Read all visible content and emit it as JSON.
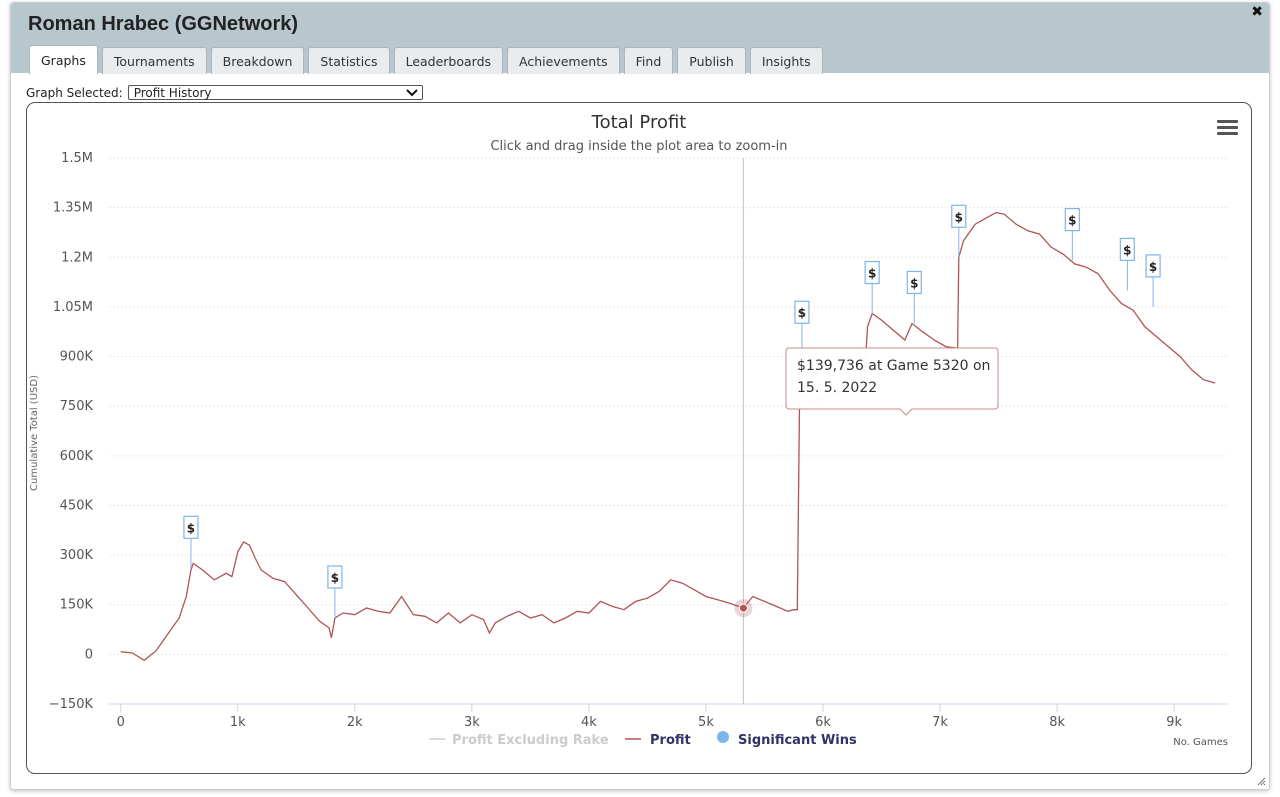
{
  "window": {
    "title": "Roman Hrabec (GGNetwork)",
    "close_glyph": "✖"
  },
  "tabs": [
    {
      "label": "Graphs",
      "active": true
    },
    {
      "label": "Tournaments",
      "active": false
    },
    {
      "label": "Breakdown",
      "active": false
    },
    {
      "label": "Statistics",
      "active": false
    },
    {
      "label": "Leaderboards",
      "active": false
    },
    {
      "label": "Achievements",
      "active": false
    },
    {
      "label": "Find",
      "active": false
    },
    {
      "label": "Publish",
      "active": false
    },
    {
      "label": "Insights",
      "active": false
    }
  ],
  "graph_selector": {
    "label": "Graph Selected:",
    "value": "Profit History"
  },
  "menu_icon": "hamburger-menu-icon",
  "tooltip": {
    "line1": "$139,736 at Game 5320 on",
    "line2": "15. 5. 2022"
  },
  "flag_glyph": "$",
  "chart_data": {
    "type": "line",
    "title": "Total Profit",
    "subtitle": "Click and drag inside the plot area to zoom-in",
    "xlabel": "No. Games",
    "ylabel": "Cumulative Total (USD)",
    "xlim": [
      -100,
      9460
    ],
    "ylim": [
      -150000,
      1500000
    ],
    "x_ticks": [
      0,
      1000,
      2000,
      3000,
      4000,
      5000,
      6000,
      7000,
      8000,
      9000
    ],
    "x_tick_labels": [
      "0",
      "1k",
      "2k",
      "3k",
      "4k",
      "5k",
      "6k",
      "7k",
      "8k",
      "9k"
    ],
    "y_ticks": [
      -150000,
      0,
      150000,
      300000,
      450000,
      600000,
      750000,
      900000,
      1050000,
      1200000,
      1350000,
      1500000
    ],
    "y_tick_labels": [
      "−150K",
      "0",
      "150K",
      "300K",
      "450K",
      "600K",
      "750K",
      "900K",
      "1.05M",
      "1.2M",
      "1.35M",
      "1.5M"
    ],
    "grid": true,
    "legend_position": "bottom-center",
    "crosshair_x": 5320,
    "highlight_point": {
      "x": 5320,
      "y": 139736
    },
    "series": [
      {
        "name": "Profit Excluding Rake",
        "color": "#cccccc",
        "hidden": true,
        "points": []
      },
      {
        "name": "Profit",
        "color": "#b05555",
        "points": [
          [
            0,
            8000
          ],
          [
            100,
            4000
          ],
          [
            200,
            -18000
          ],
          [
            300,
            10000
          ],
          [
            400,
            60000
          ],
          [
            500,
            110000
          ],
          [
            560,
            175000
          ],
          [
            600,
            255000
          ],
          [
            620,
            275000
          ],
          [
            700,
            255000
          ],
          [
            800,
            225000
          ],
          [
            900,
            245000
          ],
          [
            950,
            235000
          ],
          [
            1000,
            310000
          ],
          [
            1050,
            340000
          ],
          [
            1100,
            330000
          ],
          [
            1150,
            290000
          ],
          [
            1200,
            255000
          ],
          [
            1300,
            230000
          ],
          [
            1400,
            220000
          ],
          [
            1500,
            180000
          ],
          [
            1600,
            140000
          ],
          [
            1700,
            100000
          ],
          [
            1780,
            80000
          ],
          [
            1800,
            50000
          ],
          [
            1830,
            110000
          ],
          [
            1900,
            125000
          ],
          [
            2000,
            120000
          ],
          [
            2100,
            140000
          ],
          [
            2200,
            130000
          ],
          [
            2300,
            125000
          ],
          [
            2400,
            175000
          ],
          [
            2500,
            120000
          ],
          [
            2600,
            115000
          ],
          [
            2700,
            95000
          ],
          [
            2800,
            125000
          ],
          [
            2900,
            95000
          ],
          [
            3000,
            120000
          ],
          [
            3100,
            105000
          ],
          [
            3150,
            65000
          ],
          [
            3200,
            95000
          ],
          [
            3300,
            115000
          ],
          [
            3400,
            130000
          ],
          [
            3500,
            110000
          ],
          [
            3600,
            120000
          ],
          [
            3700,
            95000
          ],
          [
            3800,
            110000
          ],
          [
            3900,
            130000
          ],
          [
            4000,
            125000
          ],
          [
            4100,
            160000
          ],
          [
            4200,
            145000
          ],
          [
            4300,
            135000
          ],
          [
            4400,
            160000
          ],
          [
            4500,
            170000
          ],
          [
            4600,
            190000
          ],
          [
            4700,
            225000
          ],
          [
            4800,
            215000
          ],
          [
            4900,
            195000
          ],
          [
            5000,
            175000
          ],
          [
            5100,
            165000
          ],
          [
            5200,
            155000
          ],
          [
            5320,
            139736
          ],
          [
            5400,
            175000
          ],
          [
            5500,
            160000
          ],
          [
            5600,
            145000
          ],
          [
            5700,
            130000
          ],
          [
            5750,
            135000
          ],
          [
            5780,
            135000
          ],
          [
            5800,
            780000
          ],
          [
            5850,
            780000
          ],
          [
            5900,
            760000
          ],
          [
            6000,
            775000
          ],
          [
            6100,
            790000
          ],
          [
            6200,
            800000
          ],
          [
            6350,
            810000
          ],
          [
            6380,
            990000
          ],
          [
            6420,
            1030000
          ],
          [
            6500,
            1010000
          ],
          [
            6600,
            980000
          ],
          [
            6700,
            950000
          ],
          [
            6760,
            1000000
          ],
          [
            6850,
            975000
          ],
          [
            6950,
            950000
          ],
          [
            7050,
            930000
          ],
          [
            7150,
            925000
          ],
          [
            7160,
            1200000
          ],
          [
            7200,
            1250000
          ],
          [
            7300,
            1300000
          ],
          [
            7400,
            1320000
          ],
          [
            7480,
            1335000
          ],
          [
            7550,
            1330000
          ],
          [
            7650,
            1300000
          ],
          [
            7750,
            1280000
          ],
          [
            7850,
            1270000
          ],
          [
            7950,
            1230000
          ],
          [
            8050,
            1210000
          ],
          [
            8150,
            1180000
          ],
          [
            8250,
            1170000
          ],
          [
            8350,
            1150000
          ],
          [
            8450,
            1100000
          ],
          [
            8550,
            1060000
          ],
          [
            8650,
            1040000
          ],
          [
            8750,
            990000
          ],
          [
            8850,
            960000
          ],
          [
            8950,
            930000
          ],
          [
            9050,
            900000
          ],
          [
            9150,
            860000
          ],
          [
            9250,
            830000
          ],
          [
            9350,
            820000
          ]
        ]
      },
      {
        "name": "Significant Wins",
        "color": "#7cb5ec",
        "points": [
          [
            600,
            260000
          ],
          [
            1830,
            110000
          ],
          [
            5820,
            910000
          ],
          [
            6420,
            1030000
          ],
          [
            6780,
            1000000
          ],
          [
            7160,
            1200000
          ],
          [
            8130,
            1190000
          ],
          [
            8600,
            1100000
          ],
          [
            8820,
            1050000
          ]
        ]
      }
    ]
  }
}
